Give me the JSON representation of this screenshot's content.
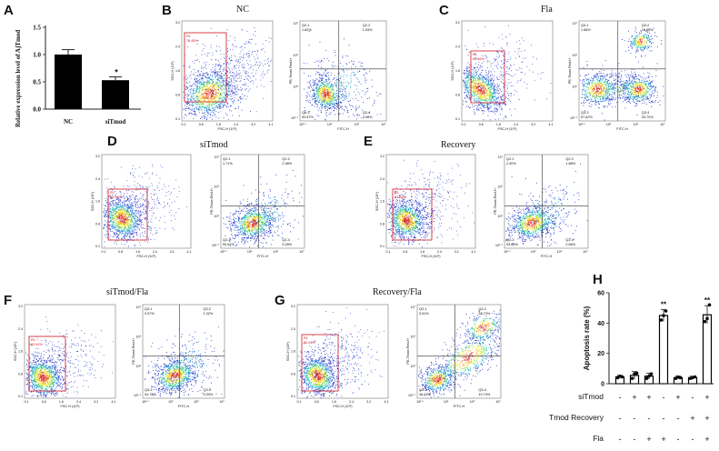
{
  "figure": {
    "panels": {
      "A": {
        "letter": "A",
        "ylabel": "Relative expression level of AjTmod"
      },
      "B": {
        "letter": "B",
        "title": "NC",
        "gate": {
          "name": "R1",
          "pct": "78.45%"
        },
        "quadrants": {
          "q1": {
            "name": "Q2-1",
            "pct": "1.82%"
          },
          "q2": {
            "name": "Q2-2",
            "pct": "1.53%"
          },
          "q3": {
            "name": "Q2-3",
            "pct": "92.67%"
          },
          "q4": {
            "name": "Q2-4",
            "pct": "3.98%"
          }
        }
      },
      "C": {
        "letter": "C",
        "title": "Fla",
        "gate": {
          "name": "R1",
          "pct": "84.66%"
        },
        "quadrants": {
          "q1": {
            "name": "Q3-1",
            "pct": "1.88%"
          },
          "q2": {
            "name": "Q3-2",
            "pct": "15.85%"
          },
          "q3": {
            "name": "Q3-3",
            "pct": "57.62%"
          },
          "q4": {
            "name": "Q3-4",
            "pct": "25.70%"
          }
        }
      },
      "D": {
        "letter": "D",
        "title": "siTmod",
        "gate": {
          "name": "R1",
          "pct": "85.23%"
        },
        "quadrants": {
          "q1": {
            "name": "Q2-1",
            "pct": "1.71%"
          },
          "q2": {
            "name": "Q2-2",
            "pct": "2.38%"
          },
          "q3": {
            "name": "Q2-3",
            "pct": "90.62%"
          },
          "q4": {
            "name": "Q2-4",
            "pct": "5.28%"
          }
        }
      },
      "E": {
        "letter": "E",
        "title": "Recovery",
        "gate": {
          "name": "R1",
          "pct": "83.82%"
        },
        "quadrants": {
          "q1": {
            "name": "Q2-1",
            "pct": "2.30%"
          },
          "q2": {
            "name": "Q2-2",
            "pct": "1.88%"
          },
          "q3": {
            "name": "Q2-3",
            "pct": "93.88%"
          },
          "q4": {
            "name": "Q2-4",
            "pct": "2.66%"
          }
        }
      },
      "F": {
        "letter": "F",
        "title": "siTmod/Fla",
        "gate": {
          "name": "R1",
          "pct": "82.51%"
        },
        "quadrants": {
          "q1": {
            "name": "Q3-1",
            "pct": "0.57%"
          },
          "q2": {
            "name": "Q3-2",
            "pct": "1.32%"
          },
          "q3": {
            "name": "Q3-3",
            "pct": "94.78%"
          },
          "q4": {
            "name": "Q3-4",
            "pct": "3.33%"
          }
        }
      },
      "G": {
        "letter": "G",
        "title": "Recovery/Fla",
        "gate": {
          "name": "R1",
          "pct": "80.51%"
        },
        "quadrants": {
          "q1": {
            "name": "Q3-1",
            "pct": "0.51%"
          },
          "q2": {
            "name": "Q3-2",
            "pct": "33.72%"
          },
          "q3": {
            "name": "Q3-3",
            "pct": "46.03%"
          },
          "q4": {
            "name": "Q3-4",
            "pct": "19.74%"
          }
        }
      },
      "H": {
        "letter": "H",
        "ylabel": "Apoptosis rate (%)",
        "row_labels": [
          "siTmod",
          "Tmod Recovery",
          "Fla"
        ],
        "matrix": [
          [
            "-",
            "+",
            "+",
            "-",
            "+",
            "-",
            "+"
          ],
          [
            "-",
            "-",
            "-",
            "-",
            "-",
            "+",
            "+"
          ],
          [
            "-",
            "-",
            "+",
            "+",
            "-",
            "-",
            "+"
          ]
        ]
      }
    },
    "scatter_axes": {
      "ssc_label": "SSC-H (10⁵)",
      "fsc_label": "FSC-H (10⁶)",
      "pe_label": "PE-Texas Red-H",
      "fitc_label": "FITC-H",
      "fsc_ticks": [
        "0.1",
        "0.8",
        "1.6",
        "2.4",
        "3.2",
        "4.1"
      ],
      "ssc_ticks": [
        "0.1",
        "0.8",
        "1.6",
        "2.4",
        "3.2"
      ],
      "fitc_ticks": [
        "10¹·⁰",
        "10⁵",
        "10⁶",
        "10⁷"
      ],
      "pe_ticks": [
        "10⁵·⁷",
        "10⁵",
        "10⁶",
        "10⁷"
      ]
    }
  },
  "chart_data": [
    {
      "type": "bar",
      "panel": "A",
      "categories": [
        "NC",
        "siTmod"
      ],
      "values": [
        1.0,
        0.53
      ],
      "errors": [
        0.09,
        0.06
      ],
      "ylabel": "Relative expression level of AjTmod",
      "ylim": [
        0,
        1.5
      ],
      "yticks": [
        "0.0",
        "0.5",
        "1.0",
        "1.5"
      ],
      "annotations": [
        "",
        "*"
      ]
    },
    {
      "type": "bar",
      "panel": "H",
      "values": [
        4.5,
        5.5,
        5.0,
        45,
        4.0,
        4.0,
        45.5
      ],
      "errors": [
        1.0,
        2.5,
        2.0,
        4.0,
        1.0,
        1.0,
        6.0
      ],
      "points": [
        [
          4,
          5,
          4.5
        ],
        [
          3.5,
          6.5,
          7
        ],
        [
          3.5,
          5,
          6.5
        ],
        [
          42,
          45,
          48
        ],
        [
          3.5,
          4.5,
          4
        ],
        [
          3.5,
          4,
          4.5
        ],
        [
          41,
          43,
          52
        ]
      ],
      "annotations": [
        "",
        "",
        "",
        "**",
        "",
        "",
        "**"
      ],
      "ylabel": "Apoptosis rate (%)",
      "ylim": [
        0,
        60
      ],
      "yticks": [
        "0",
        "20",
        "40",
        "60"
      ]
    }
  ]
}
